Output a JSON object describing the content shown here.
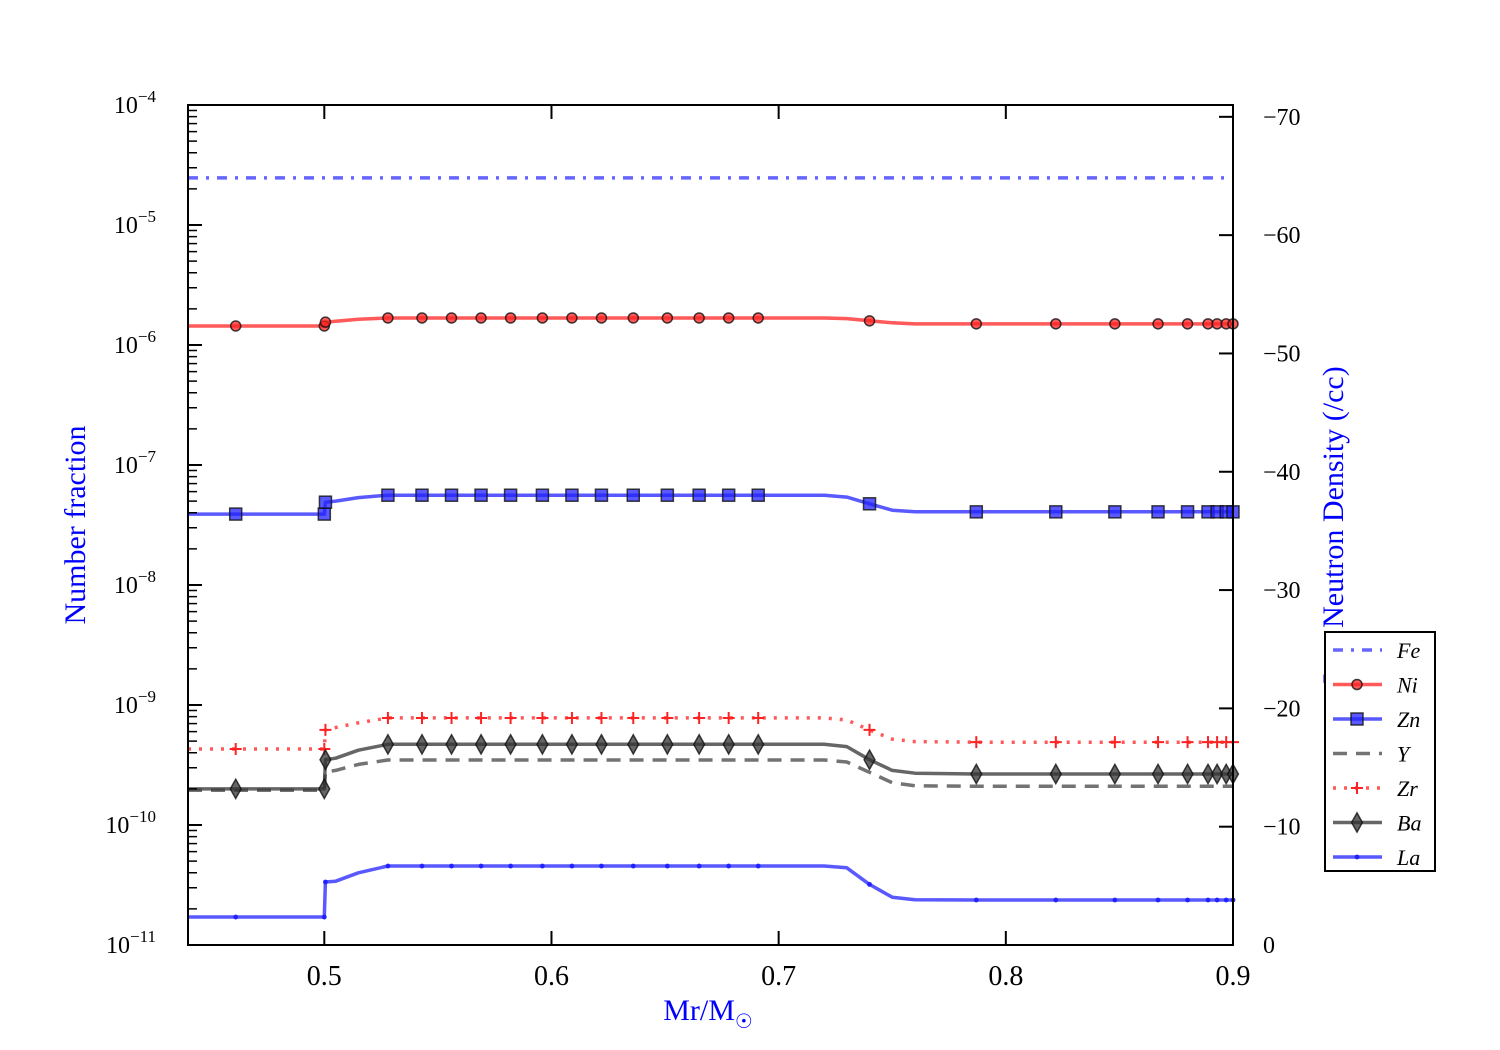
{
  "chart_data": {
    "type": "line",
    "xlabel": "Mr/M",
    "xlabel_symbol": "☉",
    "ylabel": "Number fraction",
    "y2label": "Log Neutron Density (/cc)",
    "xlim": [
      0.44,
      0.9
    ],
    "ylim": [
      1e-11,
      0.0001
    ],
    "yscale": "log",
    "y2lim": [
      0,
      -71
    ],
    "x_ticks": [
      "0.5",
      "0.6",
      "0.7",
      "0.8",
      "0.9"
    ],
    "y_ticks": [
      {
        "base": "10",
        "exp": "−4"
      },
      {
        "base": "10",
        "exp": "−5"
      },
      {
        "base": "10",
        "exp": "−6"
      },
      {
        "base": "10",
        "exp": "−7"
      },
      {
        "base": "10",
        "exp": "−8"
      },
      {
        "base": "10",
        "exp": "−9"
      },
      {
        "base": "10",
        "exp": "−10"
      },
      {
        "base": "10",
        "exp": "−11"
      }
    ],
    "y2_ticks": [
      "−70",
      "−60",
      "−50",
      "−40",
      "−30",
      "−20",
      "−10",
      "0"
    ],
    "legend_position": "right-lower",
    "x": [
      0.44,
      0.461,
      0.5,
      0.5005,
      0.505,
      0.515,
      0.528,
      0.543,
      0.556,
      0.569,
      0.582,
      0.596,
      0.609,
      0.622,
      0.636,
      0.651,
      0.665,
      0.678,
      0.691,
      0.72,
      0.73,
      0.74,
      0.75,
      0.76,
      0.787,
      0.822,
      0.848,
      0.867,
      0.88,
      0.889,
      0.893,
      0.897,
      0.9
    ],
    "marker_indices": [
      1,
      2,
      3,
      6,
      7,
      8,
      9,
      10,
      11,
      12,
      13,
      14,
      15,
      16,
      17,
      18,
      21,
      24,
      25,
      26,
      27,
      28,
      29,
      30,
      31,
      32
    ],
    "series": [
      {
        "name": "Fe",
        "color": "#3333ff",
        "style": "dashdot",
        "marker": "none",
        "values": [
          2.47e-05,
          2.47e-05,
          2.47e-05,
          2.47e-05,
          2.47e-05,
          2.47e-05,
          2.47e-05,
          2.47e-05,
          2.47e-05,
          2.47e-05,
          2.47e-05,
          2.47e-05,
          2.47e-05,
          2.47e-05,
          2.47e-05,
          2.47e-05,
          2.47e-05,
          2.47e-05,
          2.47e-05,
          2.47e-05,
          2.47e-05,
          2.47e-05,
          2.47e-05,
          2.47e-05,
          2.47e-05,
          2.47e-05,
          2.47e-05,
          2.47e-05,
          2.47e-05,
          2.47e-05,
          2.47e-05,
          2.47e-05,
          2.47e-05
        ]
      },
      {
        "name": "Ni",
        "color": "#ff2222",
        "style": "solid",
        "marker": "circle",
        "values": [
          1.44e-06,
          1.44e-06,
          1.44e-06,
          1.55e-06,
          1.58e-06,
          1.64e-06,
          1.68e-06,
          1.68e-06,
          1.68e-06,
          1.68e-06,
          1.68e-06,
          1.68e-06,
          1.68e-06,
          1.68e-06,
          1.68e-06,
          1.68e-06,
          1.68e-06,
          1.68e-06,
          1.68e-06,
          1.68e-06,
          1.66e-06,
          1.59e-06,
          1.53e-06,
          1.5e-06,
          1.5e-06,
          1.5e-06,
          1.5e-06,
          1.5e-06,
          1.5e-06,
          1.5e-06,
          1.5e-06,
          1.5e-06,
          1.5e-06
        ]
      },
      {
        "name": "Zn",
        "color": "#2222ff",
        "style": "solid",
        "marker": "square",
        "values": [
          3.9e-08,
          3.9e-08,
          3.9e-08,
          4.9e-08,
          5e-08,
          5.35e-08,
          5.6e-08,
          5.6e-08,
          5.6e-08,
          5.6e-08,
          5.6e-08,
          5.6e-08,
          5.6e-08,
          5.6e-08,
          5.6e-08,
          5.6e-08,
          5.6e-08,
          5.6e-08,
          5.6e-08,
          5.6e-08,
          5.4e-08,
          4.75e-08,
          4.2e-08,
          4.08e-08,
          4.07e-08,
          4.07e-08,
          4.07e-08,
          4.07e-08,
          4.07e-08,
          4.07e-08,
          4.07e-08,
          4.07e-08,
          4.07e-08
        ]
      },
      {
        "name": "Y",
        "color": "#444444",
        "style": "dashed",
        "marker": "none",
        "values": [
          1.95e-10,
          1.95e-10,
          1.95e-10,
          2.77e-10,
          2.85e-10,
          3.2e-10,
          3.48e-10,
          3.48e-10,
          3.48e-10,
          3.48e-10,
          3.48e-10,
          3.48e-10,
          3.48e-10,
          3.48e-10,
          3.48e-10,
          3.48e-10,
          3.48e-10,
          3.48e-10,
          3.48e-10,
          3.48e-10,
          3.35e-10,
          2.75e-10,
          2.25e-10,
          2.12e-10,
          2.1e-10,
          2.1e-10,
          2.1e-10,
          2.1e-10,
          2.1e-10,
          2.1e-10,
          2.1e-10,
          2.1e-10,
          2.1e-10
        ]
      },
      {
        "name": "Zr",
        "color": "#ff2222",
        "style": "dotted",
        "marker": "plus",
        "values": [
          4.3e-10,
          4.3e-10,
          4.3e-10,
          6.2e-10,
          6.5e-10,
          7.1e-10,
          7.8e-10,
          7.8e-10,
          7.8e-10,
          7.8e-10,
          7.8e-10,
          7.8e-10,
          7.8e-10,
          7.8e-10,
          7.8e-10,
          7.8e-10,
          7.8e-10,
          7.8e-10,
          7.8e-10,
          7.8e-10,
          7.5e-10,
          6.2e-10,
          5.2e-10,
          4.95e-10,
          4.9e-10,
          4.9e-10,
          4.9e-10,
          4.9e-10,
          4.9e-10,
          4.9e-10,
          4.9e-10,
          4.9e-10,
          4.9e-10
        ]
      },
      {
        "name": "Ba",
        "color": "#333333",
        "style": "solid",
        "marker": "diamond",
        "values": [
          2e-10,
          2e-10,
          2e-10,
          3.5e-10,
          3.6e-10,
          4.2e-10,
          4.7e-10,
          4.7e-10,
          4.7e-10,
          4.7e-10,
          4.7e-10,
          4.7e-10,
          4.7e-10,
          4.7e-10,
          4.7e-10,
          4.7e-10,
          4.7e-10,
          4.7e-10,
          4.7e-10,
          4.7e-10,
          4.5e-10,
          3.5e-10,
          2.85e-10,
          2.7e-10,
          2.66e-10,
          2.66e-10,
          2.66e-10,
          2.66e-10,
          2.66e-10,
          2.66e-10,
          2.66e-10,
          2.66e-10,
          2.66e-10
        ]
      },
      {
        "name": "La",
        "color": "#2222ff",
        "style": "solid",
        "marker": "dot",
        "values": [
          1.71e-11,
          1.71e-11,
          1.71e-11,
          3.35e-11,
          3.4e-11,
          4e-11,
          4.55e-11,
          4.55e-11,
          4.55e-11,
          4.55e-11,
          4.55e-11,
          4.55e-11,
          4.55e-11,
          4.55e-11,
          4.55e-11,
          4.55e-11,
          4.55e-11,
          4.55e-11,
          4.55e-11,
          4.55e-11,
          4.4e-11,
          3.2e-11,
          2.5e-11,
          2.38e-11,
          2.37e-11,
          2.37e-11,
          2.37e-11,
          2.37e-11,
          2.37e-11,
          2.37e-11,
          2.37e-11,
          2.37e-11,
          2.37e-11
        ]
      }
    ]
  }
}
